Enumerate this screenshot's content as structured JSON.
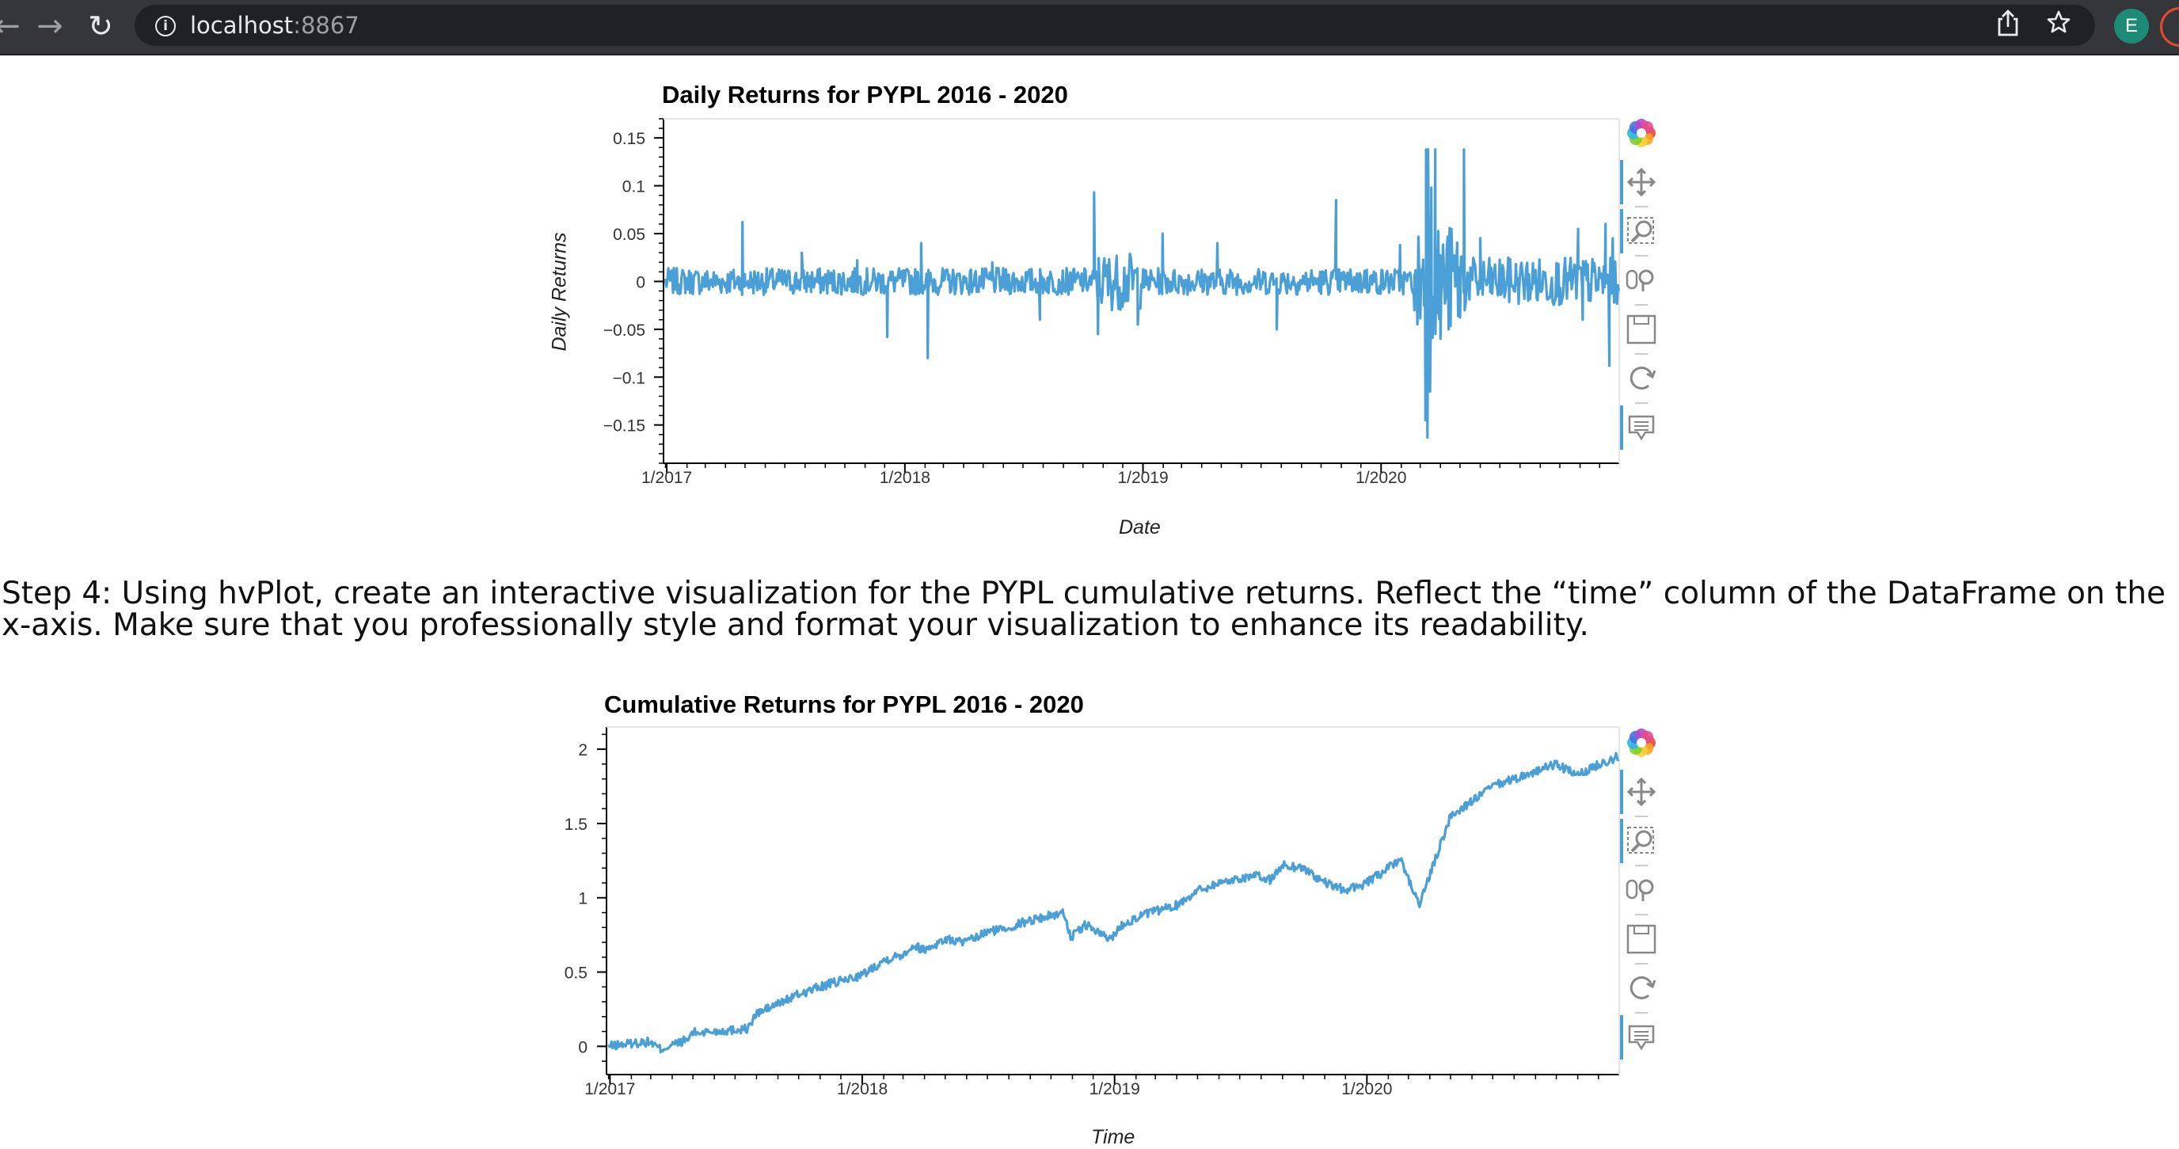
{
  "browser": {
    "back_glyph": "←",
    "forward_glyph": "→",
    "reload_glyph": "↻",
    "url_host": "localhost",
    "url_port": ":8867",
    "avatar_letter": "E",
    "icons": [
      "back-arrow-icon",
      "forward-arrow-icon",
      "reload-icon",
      "site-info-icon",
      "share-icon",
      "bookmark-star-icon"
    ]
  },
  "step_text": "Step 4: Using hvPlot, create an interactive visualization for the PYPL cumulative returns. Reflect the “time” column of the DataFrame on the x-axis. Make sure that you professionally style and format your visualization to enhance its readability.",
  "accent_color": "#4a9fd6",
  "bokeh_tools": [
    "bokeh-logo-icon",
    "pan-icon",
    "box-zoom-icon",
    "wheel-zoom-icon",
    "save-icon",
    "reset-icon",
    "hover-icon"
  ],
  "chart_data": [
    {
      "type": "line",
      "title": "Daily Returns for PYPL 2016 - 2020",
      "xlabel": "Date",
      "ylabel": "Daily Returns",
      "xlim": [
        "2016-12-27",
        "2020-12-31"
      ],
      "ylim": [
        -0.19,
        0.17
      ],
      "x_tick_labels": [
        "1/2017",
        "1/2018",
        "1/2019",
        "1/2020"
      ],
      "y_ticks": [
        0.15,
        0.1,
        0.05,
        0,
        -0.05,
        -0.1,
        -0.15
      ],
      "y_tick_labels": [
        "0.15",
        "0.1",
        "0.05",
        "0",
        "−0.05",
        "−0.1",
        "−0.15"
      ],
      "grid": false,
      "color": "#4a9fd6",
      "points": [
        [
          "2016-12-30",
          0.0
        ],
        [
          "2017-02-15",
          0.01
        ],
        [
          "2017-04-27",
          0.062
        ],
        [
          "2017-05-01",
          -0.005
        ],
        [
          "2017-07-27",
          0.03
        ],
        [
          "2017-10-20",
          0.022
        ],
        [
          "2017-12-05",
          -0.058
        ],
        [
          "2018-01-26",
          0.04
        ],
        [
          "2018-02-05",
          -0.08
        ],
        [
          "2018-05-15",
          0.02
        ],
        [
          "2018-07-27",
          -0.04
        ],
        [
          "2018-10-18",
          0.093
        ],
        [
          "2018-10-24",
          -0.055
        ],
        [
          "2018-12-24",
          -0.045
        ],
        [
          "2019-01-31",
          0.05
        ],
        [
          "2019-04-25",
          0.04
        ],
        [
          "2019-07-25",
          -0.05
        ],
        [
          "2019-10-24",
          0.085
        ],
        [
          "2019-12-10",
          0.012
        ],
        [
          "2020-01-30",
          0.038
        ],
        [
          "2020-02-21",
          -0.03
        ],
        [
          "2020-03-09",
          -0.145
        ],
        [
          "2020-03-10",
          0.138
        ],
        [
          "2020-03-12",
          -0.163
        ],
        [
          "2020-03-13",
          0.138
        ],
        [
          "2020-03-16",
          -0.115
        ],
        [
          "2020-03-18",
          0.098
        ],
        [
          "2020-03-24",
          0.138
        ],
        [
          "2020-04-01",
          -0.06
        ],
        [
          "2020-05-07",
          0.138
        ],
        [
          "2020-06-01",
          0.045
        ],
        [
          "2020-07-30",
          -0.02
        ],
        [
          "2020-10-29",
          0.055
        ],
        [
          "2020-11-05",
          -0.04
        ],
        [
          "2020-12-10",
          0.06
        ],
        [
          "2020-12-16",
          -0.088
        ],
        [
          "2020-12-21",
          0.045
        ],
        [
          "2020-12-30",
          -0.01
        ]
      ]
    },
    {
      "type": "line",
      "title": "Cumulative Returns for PYPL 2016 - 2020",
      "xlabel": "Time",
      "ylabel": "",
      "xlim": [
        "2016-12-27",
        "2020-12-31"
      ],
      "ylim": [
        -0.19,
        2.15
      ],
      "x_tick_labels": [
        "1/2017",
        "1/2018",
        "1/2019",
        "1/2020"
      ],
      "y_ticks": [
        2,
        1.5,
        1,
        0.5,
        0
      ],
      "y_tick_labels": [
        "2",
        "1.5",
        "1",
        "0.5",
        "0"
      ],
      "grid": false,
      "color": "#4a9fd6",
      "points": [
        [
          "2016-12-30",
          0.0
        ],
        [
          "2017-01-31",
          0.02
        ],
        [
          "2017-02-28",
          0.03
        ],
        [
          "2017-03-15",
          -0.02
        ],
        [
          "2017-04-26",
          0.05
        ],
        [
          "2017-04-28",
          0.09
        ],
        [
          "2017-06-01",
          0.1
        ],
        [
          "2017-07-20",
          0.12
        ],
        [
          "2017-08-01",
          0.22
        ],
        [
          "2017-10-01",
          0.35
        ],
        [
          "2017-11-01",
          0.4
        ],
        [
          "2018-01-01",
          0.48
        ],
        [
          "2018-02-01",
          0.58
        ],
        [
          "2018-03-01",
          0.62
        ],
        [
          "2018-03-15",
          0.68
        ],
        [
          "2018-04-01",
          0.65
        ],
        [
          "2018-05-01",
          0.72
        ],
        [
          "2018-06-01",
          0.7
        ],
        [
          "2018-07-01",
          0.77
        ],
        [
          "2018-08-01",
          0.8
        ],
        [
          "2018-09-01",
          0.85
        ],
        [
          "2018-10-20",
          0.9
        ],
        [
          "2018-10-30",
          0.73
        ],
        [
          "2018-11-20",
          0.82
        ],
        [
          "2018-12-24",
          0.72
        ],
        [
          "2019-01-15",
          0.83
        ],
        [
          "2019-02-15",
          0.89
        ],
        [
          "2019-04-01",
          0.95
        ],
        [
          "2019-05-01",
          1.05
        ],
        [
          "2019-06-01",
          1.1
        ],
        [
          "2019-07-20",
          1.15
        ],
        [
          "2019-08-15",
          1.12
        ],
        [
          "2019-09-01",
          1.22
        ],
        [
          "2019-10-01",
          1.2
        ],
        [
          "2019-11-01",
          1.1
        ],
        [
          "2019-12-01",
          1.05
        ],
        [
          "2020-01-01",
          1.1
        ],
        [
          "2020-02-01",
          1.2
        ],
        [
          "2020-02-20",
          1.25
        ],
        [
          "2020-03-16",
          0.95
        ],
        [
          "2020-04-01",
          1.15
        ],
        [
          "2020-05-01",
          1.55
        ],
        [
          "2020-06-01",
          1.65
        ],
        [
          "2020-07-01",
          1.75
        ],
        [
          "2020-08-01",
          1.8
        ],
        [
          "2020-09-01",
          1.85
        ],
        [
          "2020-10-01",
          1.9
        ],
        [
          "2020-11-01",
          1.82
        ],
        [
          "2020-12-01",
          1.9
        ],
        [
          "2020-12-30",
          1.95
        ]
      ]
    }
  ]
}
